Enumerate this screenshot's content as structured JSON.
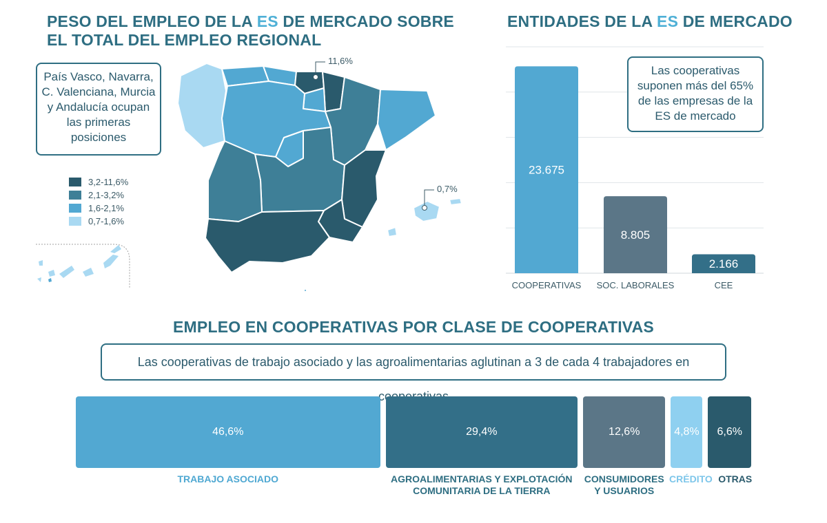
{
  "titles": {
    "map": {
      "pre": "PESO DEL EMPLEO DE LA ",
      "hl": "ES",
      "post": " DE MERCADO SOBRE EL TOTAL DEL EMPLEO REGIONAL"
    },
    "entities": {
      "pre": "ENTIDADES DE LA ",
      "hl": "ES",
      "post": " DE MERCADO"
    },
    "employment": "EMPLEO EN COOPERATIVAS POR CLASE DE COOPERATIVAS"
  },
  "map_note": "País Vasco, Navarra, C. Valenciana, Murcia y Andalucía ocupan las primeras posiciones",
  "legend": [
    {
      "label": "3,2-11,6%",
      "color": "#2a5a6c"
    },
    {
      "label": "2,1-3,2%",
      "color": "#3e7f97"
    },
    {
      "label": "1,6-2,1%",
      "color": "#52a8d2"
    },
    {
      "label": "0,7-1,6%",
      "color": "#a9d9f2"
    }
  ],
  "map_labels": {
    "max": "11,6%",
    "min": "0,7%"
  },
  "chart_data": [
    {
      "type": "bar",
      "title": "ENTIDADES DE LA ES DE MERCADO",
      "categories": [
        "COOPERATIVAS",
        "SOC. LABORALES",
        "CEE"
      ],
      "values": [
        23675,
        8805,
        2166
      ],
      "value_labels": [
        "23.675",
        "8.805",
        "2.166"
      ],
      "colors": [
        "#52a8d2",
        "#5b7687",
        "#336f88"
      ],
      "ylim": [
        0,
        25000
      ],
      "grid": true,
      "annotation": "Las cooperativas suponen más del 65% de las empresas de la ES de mercado"
    },
    {
      "type": "bar",
      "orientation": "horizontal-stacked",
      "title": "EMPLEO EN COOPERATIVAS POR CLASE DE COOPERATIVAS",
      "annotation": "Las cooperativas de trabajo asociado y las agroalimentarias aglutinan a 3 de cada 4 trabajadores en cooperativas",
      "categories": [
        "TRABAJO ASOCIADO",
        "AGROALIMENTARIAS Y EXPLOTACIÓN COMUNITARIA DE LA TIERRA",
        "CONSUMIDORES Y USUARIOS",
        "CRÉDITO",
        "OTRAS"
      ],
      "values": [
        46.6,
        29.4,
        12.6,
        4.8,
        6.6
      ],
      "value_labels": [
        "46,6%",
        "29,4%",
        "12,6%",
        "4,8%",
        "6,6%"
      ],
      "label_lines": [
        [
          "TRABAJO ASOCIADO"
        ],
        [
          "AGROALIMENTARIAS Y EXPLOTACIÓN",
          "COMUNITARIA DE LA TIERRA"
        ],
        [
          "CONSUMIDORES",
          "Y USUARIOS"
        ],
        [
          "CRÉDITO"
        ],
        [
          "OTRAS"
        ]
      ],
      "colors": [
        "#52a8d2",
        "#336f88",
        "#5b7687",
        "#8fd0f0",
        "#2a5a6c"
      ],
      "label_colors": [
        "#4fa8d2",
        "#2e6e82",
        "#2e6e82",
        "#7dc6ea",
        "#2a5a6c"
      ]
    }
  ]
}
